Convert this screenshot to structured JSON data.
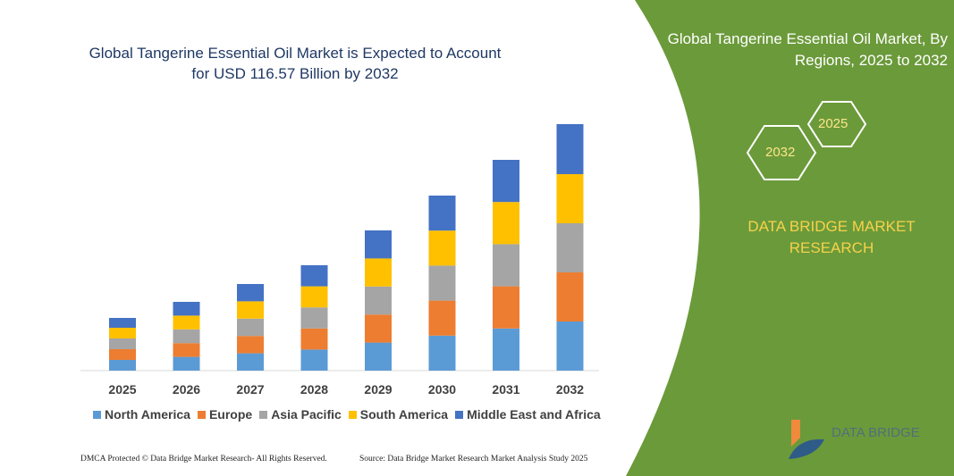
{
  "title": "Global Tangerine Essential Oil Market is Expected to Account for USD 116.57 Billion by 2032",
  "side_title": "Global Tangerine Essential Oil Market, By Regions, 2025 to 2032",
  "hex_labels": [
    "2025",
    "2032"
  ],
  "brand": "DATA BRIDGE MARKET RESEARCH",
  "logo_text": "DATA BRIDGE",
  "footer_left": "DMCA Protected © Data Bridge Market Research- All Rights Reserved.",
  "footer_right": "Source: Data Bridge Market Research Market Analysis Study 2025",
  "colors": {
    "green_panel": "#6b9a3a",
    "title": "#1f3864"
  },
  "chart_data": {
    "type": "bar",
    "stacked": true,
    "categories": [
      "2025",
      "2026",
      "2027",
      "2028",
      "2029",
      "2030",
      "2031",
      "2032"
    ],
    "series": [
      {
        "name": "North America",
        "color": "#5b9bd5",
        "values": [
          12,
          15.4,
          19.4,
          23.6,
          31.4,
          39.2,
          47.2,
          55
        ]
      },
      {
        "name": "Europe",
        "color": "#ed7d31",
        "values": [
          12,
          15.4,
          19.4,
          23.6,
          31.4,
          39.2,
          47.2,
          55
        ]
      },
      {
        "name": "Asia Pacific",
        "color": "#a5a5a5",
        "values": [
          12,
          15.4,
          19.4,
          23.6,
          31.4,
          39.2,
          47.2,
          55
        ]
      },
      {
        "name": "South America",
        "color": "#ffc000",
        "values": [
          12,
          15.4,
          19.4,
          23.6,
          31.4,
          39.2,
          47.2,
          55
        ]
      },
      {
        "name": "Middle East and Africa",
        "color": "#4472c4",
        "values": [
          11,
          15.4,
          19.4,
          23.6,
          31.4,
          39.2,
          47.2,
          56
        ]
      }
    ],
    "legend": "bottom",
    "grid": false
  }
}
